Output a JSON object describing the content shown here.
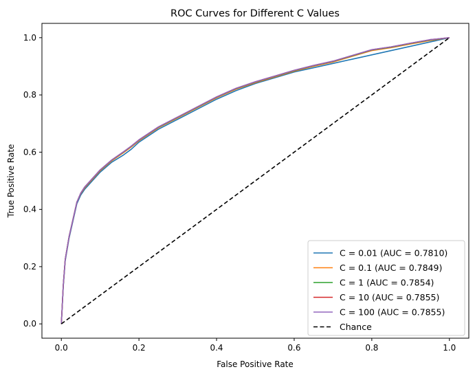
{
  "chart_data": {
    "type": "line",
    "title": "ROC Curves for Different C Values",
    "xlabel": "False Positive Rate",
    "ylabel": "True Positive Rate",
    "xlim": [
      -0.05,
      1.05
    ],
    "ylim": [
      -0.05,
      1.05
    ],
    "xticks": [
      0.0,
      0.2,
      0.4,
      0.6,
      0.8,
      1.0
    ],
    "yticks": [
      0.0,
      0.2,
      0.4,
      0.6,
      0.8,
      1.0
    ],
    "xtick_labels": [
      "0.0",
      "0.2",
      "0.4",
      "0.6",
      "0.8",
      "1.0"
    ],
    "ytick_labels": [
      "0.0",
      "0.2",
      "0.4",
      "0.6",
      "0.8",
      "1.0"
    ],
    "grid": false,
    "legend_position": "lower-right",
    "series": [
      {
        "name": "C = 0.01 (AUC = 0.7810)",
        "color": "#1f77b4",
        "style": "solid",
        "x": [
          0.0,
          0.005,
          0.01,
          0.02,
          0.03,
          0.04,
          0.05,
          0.06,
          0.08,
          0.1,
          0.13,
          0.16,
          0.18,
          0.2,
          0.25,
          0.3,
          0.35,
          0.4,
          0.45,
          0.5,
          0.55,
          0.6,
          0.65,
          0.7,
          0.75,
          0.8,
          0.85,
          0.9,
          0.95,
          1.0
        ],
        "y": [
          0.0,
          0.13,
          0.22,
          0.3,
          0.36,
          0.42,
          0.45,
          0.47,
          0.5,
          0.53,
          0.565,
          0.59,
          0.61,
          0.635,
          0.68,
          0.715,
          0.75,
          0.785,
          0.815,
          0.84,
          0.86,
          0.88,
          0.895,
          0.91,
          0.925,
          0.94,
          0.955,
          0.97,
          0.985,
          1.0
        ]
      },
      {
        "name": "C = 0.1 (AUC = 0.7849)",
        "color": "#ff7f0e",
        "style": "solid",
        "x": [
          0.0,
          0.005,
          0.01,
          0.02,
          0.03,
          0.04,
          0.05,
          0.06,
          0.08,
          0.1,
          0.13,
          0.16,
          0.18,
          0.2,
          0.25,
          0.3,
          0.35,
          0.4,
          0.45,
          0.5,
          0.55,
          0.6,
          0.65,
          0.7,
          0.75,
          0.8,
          0.85,
          0.9,
          0.95,
          1.0
        ],
        "y": [
          0.0,
          0.135,
          0.225,
          0.305,
          0.365,
          0.425,
          0.455,
          0.475,
          0.505,
          0.535,
          0.57,
          0.598,
          0.618,
          0.64,
          0.685,
          0.72,
          0.755,
          0.79,
          0.82,
          0.843,
          0.863,
          0.883,
          0.9,
          0.915,
          0.935,
          0.955,
          0.965,
          0.978,
          0.99,
          1.0
        ]
      },
      {
        "name": "C = 1 (AUC = 0.7854)",
        "color": "#2ca02c",
        "style": "solid",
        "x": [
          0.0,
          0.005,
          0.01,
          0.02,
          0.03,
          0.04,
          0.05,
          0.06,
          0.08,
          0.1,
          0.13,
          0.16,
          0.18,
          0.2,
          0.25,
          0.3,
          0.35,
          0.4,
          0.45,
          0.5,
          0.55,
          0.6,
          0.65,
          0.7,
          0.75,
          0.8,
          0.85,
          0.9,
          0.95,
          1.0
        ],
        "y": [
          0.0,
          0.135,
          0.225,
          0.305,
          0.365,
          0.425,
          0.456,
          0.477,
          0.507,
          0.537,
          0.572,
          0.6,
          0.62,
          0.642,
          0.687,
          0.722,
          0.757,
          0.792,
          0.822,
          0.845,
          0.865,
          0.885,
          0.902,
          0.917,
          0.937,
          0.957,
          0.967,
          0.98,
          0.992,
          1.0
        ]
      },
      {
        "name": "C = 10 (AUC = 0.7855)",
        "color": "#d62728",
        "style": "solid",
        "x": [
          0.0,
          0.005,
          0.01,
          0.02,
          0.03,
          0.04,
          0.05,
          0.06,
          0.08,
          0.1,
          0.13,
          0.16,
          0.18,
          0.2,
          0.25,
          0.3,
          0.35,
          0.4,
          0.45,
          0.5,
          0.55,
          0.6,
          0.65,
          0.7,
          0.75,
          0.8,
          0.85,
          0.9,
          0.95,
          1.0
        ],
        "y": [
          0.0,
          0.135,
          0.225,
          0.305,
          0.365,
          0.425,
          0.457,
          0.478,
          0.508,
          0.538,
          0.573,
          0.601,
          0.621,
          0.643,
          0.688,
          0.723,
          0.758,
          0.793,
          0.823,
          0.846,
          0.866,
          0.886,
          0.903,
          0.918,
          0.938,
          0.958,
          0.968,
          0.981,
          0.993,
          1.0
        ]
      },
      {
        "name": "C = 100 (AUC = 0.7855)",
        "color": "#9467bd",
        "style": "solid",
        "x": [
          0.0,
          0.005,
          0.01,
          0.02,
          0.03,
          0.04,
          0.05,
          0.06,
          0.08,
          0.1,
          0.13,
          0.16,
          0.18,
          0.2,
          0.25,
          0.3,
          0.35,
          0.4,
          0.45,
          0.5,
          0.55,
          0.6,
          0.65,
          0.7,
          0.75,
          0.8,
          0.85,
          0.9,
          0.95,
          1.0
        ],
        "y": [
          0.0,
          0.135,
          0.225,
          0.305,
          0.365,
          0.425,
          0.457,
          0.478,
          0.508,
          0.538,
          0.573,
          0.601,
          0.621,
          0.643,
          0.688,
          0.723,
          0.758,
          0.793,
          0.823,
          0.846,
          0.866,
          0.886,
          0.903,
          0.918,
          0.938,
          0.958,
          0.968,
          0.981,
          0.993,
          1.0
        ]
      },
      {
        "name": "Chance",
        "color": "#000000",
        "style": "dashed",
        "x": [
          0.0,
          1.0
        ],
        "y": [
          0.0,
          1.0
        ]
      }
    ]
  }
}
